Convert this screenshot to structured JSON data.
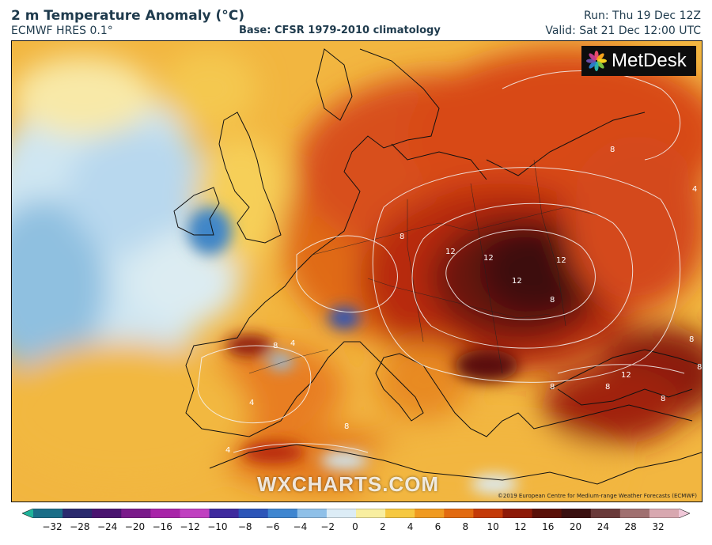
{
  "header": {
    "title": "2 m Temperature Anomaly (°C)",
    "model": "ECMWF HRES 0.1°",
    "base": "Base: CFSR 1979-2010 climatology",
    "run": "Run: Thu 19 Dec 12Z",
    "valid": "Valid: Sat 21 Dec 12:00 UTC"
  },
  "logo": {
    "text": "MetDesk",
    "icon": "metdesk-star-icon"
  },
  "watermark": "WXCHARTS.COM",
  "copyright": "©2019 European Centre for Medium-range Weather Forecasts (ECMWF)",
  "colorbar": {
    "ticks": [
      "−32",
      "−28",
      "−24",
      "−20",
      "−16",
      "−12",
      "−10",
      "−8",
      "−6",
      "−4",
      "−2",
      "0",
      "2",
      "4",
      "6",
      "8",
      "10",
      "12",
      "16",
      "20",
      "24",
      "28",
      "32"
    ],
    "colors": [
      "#1fb39a",
      "#1a6e88",
      "#2a2a6e",
      "#4a1470",
      "#7a1a8a",
      "#a824a8",
      "#c040c0",
      "#3f2a9e",
      "#2c55b8",
      "#3f86d0",
      "#8fc0e8",
      "#dcecf6",
      "#f8eea0",
      "#f6c840",
      "#f09a20",
      "#e26a10",
      "#c43a08",
      "#8e1a08",
      "#5a1008",
      "#3a1010",
      "#6a3a3a",
      "#a07070",
      "#d8a8b0",
      "#f0c8d8"
    ]
  },
  "contour_labels": [
    "8",
    "8",
    "12",
    "12",
    "12",
    "12",
    "8",
    "4",
    "8",
    "8",
    "4",
    "8",
    "12",
    "8",
    "4",
    "8",
    "4",
    "8",
    "8"
  ]
}
